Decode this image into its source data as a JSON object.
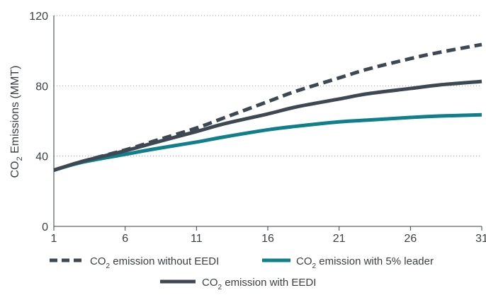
{
  "chart_data": {
    "type": "line",
    "title": "",
    "xlabel": "",
    "ylabel_main": "CO",
    "ylabel_sub": "2",
    "ylabel_rest": " Emissions (MMT)",
    "xlim": [
      1,
      31
    ],
    "ylim": [
      0,
      120
    ],
    "x_ticks": [
      1,
      6,
      11,
      16,
      21,
      26,
      31
    ],
    "y_ticks": [
      0,
      40,
      80,
      120
    ],
    "grid": "horizontal dotted",
    "legend_position": "bottom",
    "x": [
      1,
      3,
      6,
      8,
      11,
      13,
      16,
      18,
      21,
      23,
      26,
      28,
      31
    ],
    "series": [
      {
        "name_main": "CO",
        "name_sub": "2",
        "name_rest": " emission without EEDI",
        "color": "#3d4852",
        "style": "dashed",
        "values": [
          32,
          37,
          43.5,
          48.5,
          56,
          62,
          71,
          77,
          84.5,
          89.5,
          95.5,
          99,
          103.5
        ]
      },
      {
        "name_main": "CO",
        "name_sub": "2",
        "name_rest": " emission with 5% leader",
        "color": "#0f7f8c",
        "style": "solid",
        "values": [
          32,
          36.5,
          41,
          44,
          48,
          51,
          55,
          57,
          59.5,
          60.5,
          62,
          62.8,
          63.5
        ]
      },
      {
        "name_main": "CO",
        "name_sub": "2",
        "name_rest": " emission with EEDI",
        "color": "#3d4852",
        "style": "solid",
        "values": [
          32,
          37,
          43,
          47.5,
          54,
          58.5,
          64,
          68,
          72.5,
          75.5,
          78.5,
          80.5,
          82.5
        ]
      }
    ]
  }
}
